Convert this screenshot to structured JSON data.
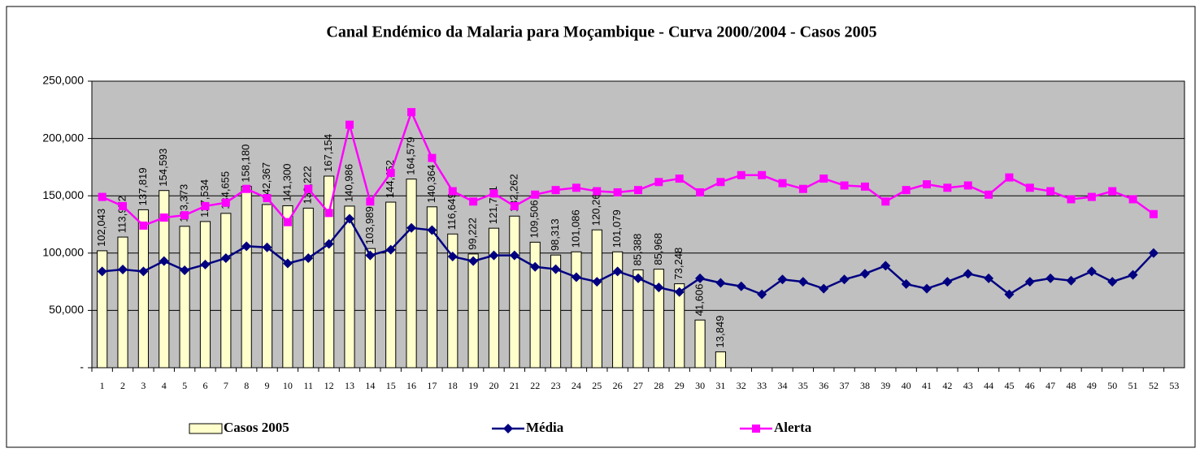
{
  "chart_data": {
    "type": "bar-line",
    "title": "Canal Endémico da Malaria para Moçambique - Curva 2000/2004 - Casos 2005",
    "categories": [
      "1",
      "2",
      "3",
      "4",
      "5",
      "6",
      "7",
      "8",
      "9",
      "10",
      "11",
      "12",
      "13",
      "14",
      "15",
      "16",
      "17",
      "18",
      "19",
      "20",
      "21",
      "22",
      "23",
      "24",
      "25",
      "26",
      "27",
      "28",
      "29",
      "30",
      "31",
      "32",
      "33",
      "34",
      "35",
      "36",
      "37",
      "38",
      "39",
      "40",
      "41",
      "42",
      "43",
      "44",
      "45",
      "46",
      "47",
      "48",
      "49",
      "50",
      "51",
      "52",
      "53"
    ],
    "series": [
      {
        "name": "Casos 2005",
        "type": "bar",
        "color": "#ffffcc",
        "values": [
          102043,
          113972,
          137819,
          154593,
          123373,
          127534,
          134655,
          158180,
          142367,
          141300,
          139222,
          167154,
          140986,
          103989,
          144452,
          164579,
          140364,
          116649,
          99222,
          121701,
          132262,
          109506,
          98313,
          101086,
          120264,
          101079,
          85388,
          85968,
          73248,
          41606,
          13849,
          null,
          null,
          null,
          null,
          null,
          null,
          null,
          null,
          null,
          null,
          null,
          null,
          null,
          null,
          null,
          null,
          null,
          null,
          null,
          null,
          null,
          null
        ],
        "value_labels": [
          "102,043",
          "113,972",
          "137,819",
          "154,593",
          "123,373",
          "127,534",
          "134,655",
          "158,180",
          "142,367",
          "141,300",
          "139,222",
          "167,154",
          "140,986",
          "103,989",
          "144,452",
          "164,579",
          "140,364",
          "116,649",
          "99,222",
          "121,701",
          "132,262",
          "109,506",
          "98,313",
          "101,086",
          "120,264",
          "101,079",
          "85,388",
          "85,968",
          "73,248",
          "41,606",
          "13,849",
          null,
          null,
          null,
          null,
          null,
          null,
          null,
          null,
          null,
          null,
          null,
          null,
          null,
          null,
          null,
          null,
          null,
          null,
          null,
          null,
          null,
          null
        ]
      },
      {
        "name": "Média",
        "type": "line",
        "marker": "diamond",
        "color": "#000080",
        "values": [
          84000,
          85700,
          84000,
          93000,
          85000,
          90000,
          95600,
          106000,
          105000,
          91000,
          95600,
          108000,
          130000,
          98000,
          103000,
          122000,
          120000,
          97000,
          93000,
          98000,
          98000,
          88000,
          86000,
          79000,
          75000,
          84000,
          78000,
          70000,
          66000,
          78000,
          74000,
          71000,
          64000,
          77000,
          75000,
          69000,
          77000,
          82000,
          89000,
          73000,
          69000,
          75000,
          82000,
          78000,
          64000,
          75000,
          78000,
          76000,
          84000,
          75000,
          81000,
          100000,
          null
        ]
      },
      {
        "name": "Alerta",
        "type": "line",
        "marker": "square",
        "color": "#ff00ff",
        "values": [
          149000,
          141000,
          124000,
          131000,
          133000,
          141000,
          144000,
          156000,
          148000,
          127000,
          156000,
          135000,
          212000,
          145000,
          170000,
          223000,
          183000,
          154000,
          145000,
          152000,
          141000,
          151000,
          155000,
          157000,
          154000,
          153000,
          155000,
          162000,
          165000,
          153000,
          162000,
          168000,
          168000,
          161000,
          156000,
          165000,
          159000,
          158000,
          145000,
          155000,
          160000,
          157000,
          159000,
          151000,
          166000,
          157000,
          154000,
          147000,
          149000,
          154000,
          147000,
          134000,
          null
        ]
      }
    ],
    "ylim": [
      0,
      250000
    ],
    "yticks": [
      {
        "value": 0,
        "label": "-"
      },
      {
        "value": 50000,
        "label": "50,000"
      },
      {
        "value": 100000,
        "label": "100,000"
      },
      {
        "value": 150000,
        "label": "150,000"
      },
      {
        "value": 200000,
        "label": "200,000"
      },
      {
        "value": 250000,
        "label": "250,000"
      }
    ],
    "grid": true,
    "legend": "bottom"
  }
}
